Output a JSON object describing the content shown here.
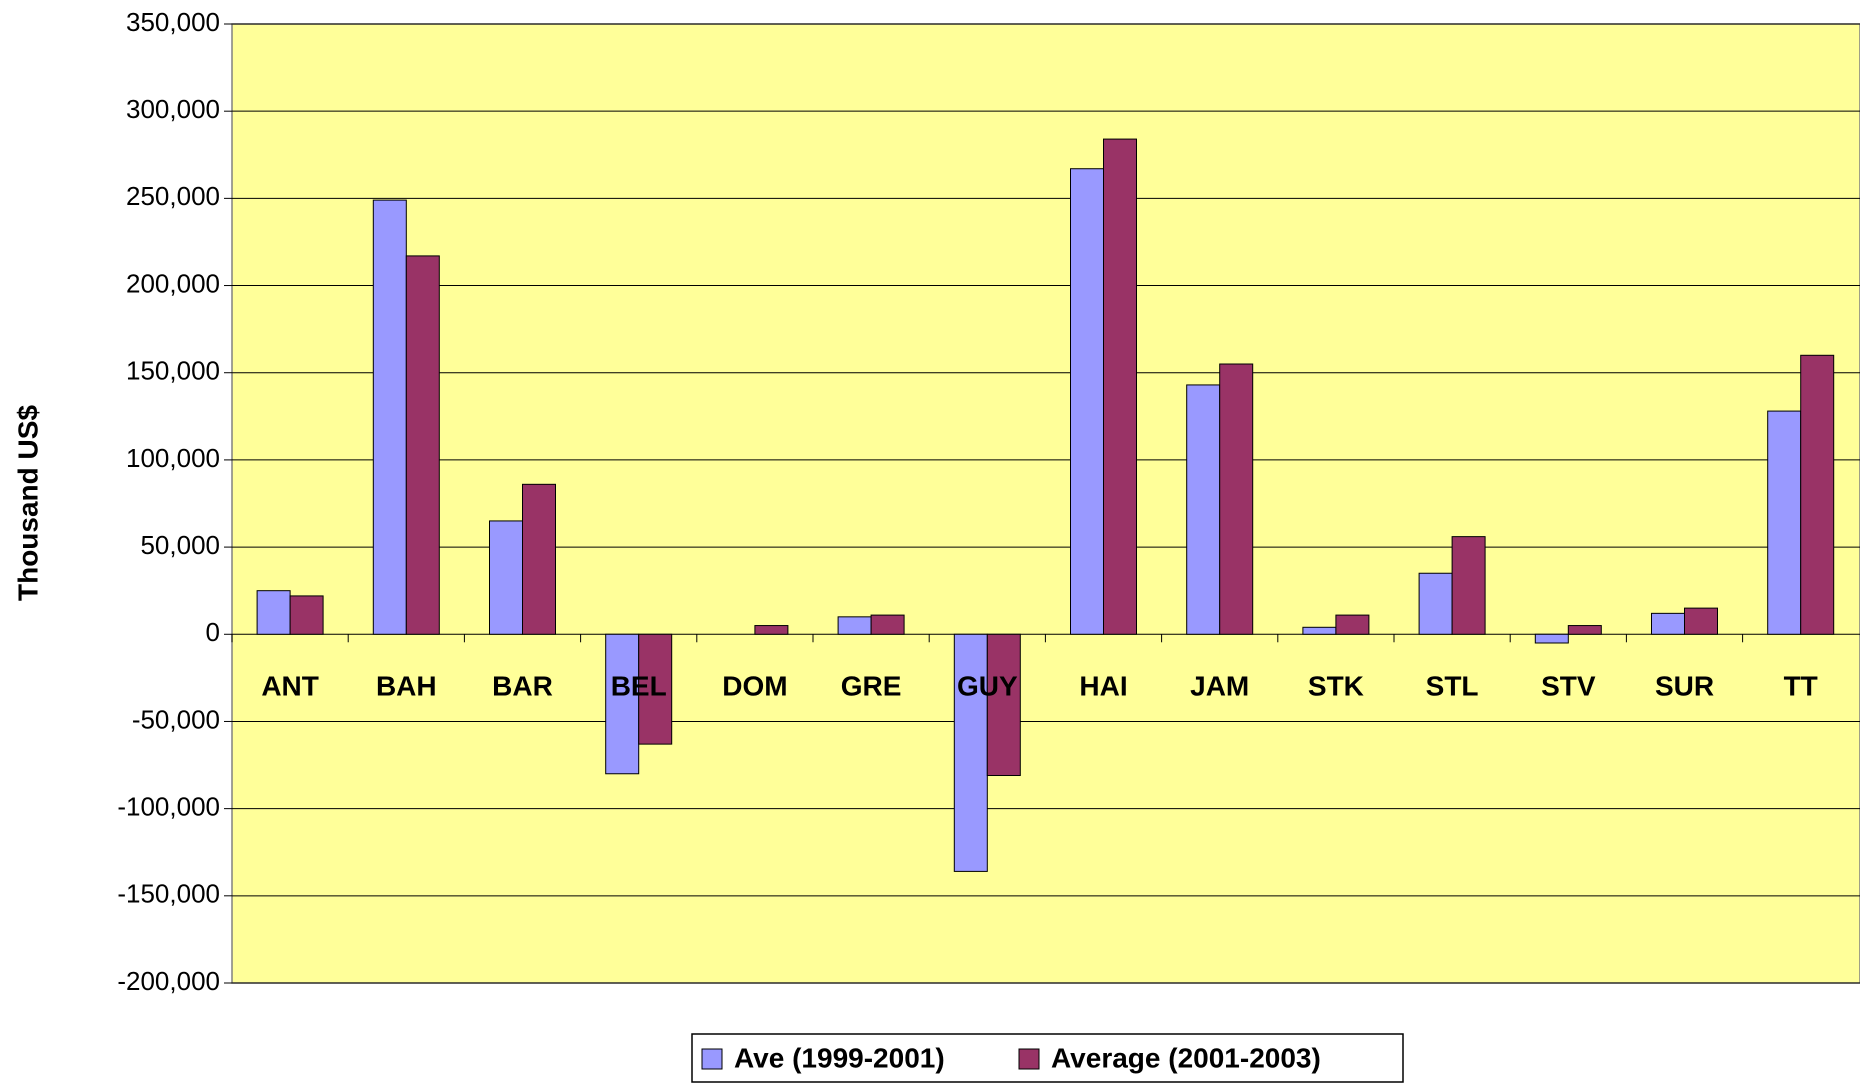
{
  "chart_data": {
    "type": "bar",
    "y_label": "Thousand US$",
    "categories": [
      "ANT",
      "BAH",
      "BAR",
      "BEL",
      "DOM",
      "GRE",
      "GUY",
      "HAI",
      "JAM",
      "STK",
      "STL",
      "STV",
      "SUR",
      "TT"
    ],
    "series": [
      {
        "name": "Ave (1999-2001)",
        "color": "#9999ff",
        "values": [
          25000,
          249000,
          65000,
          -80000,
          0,
          10000,
          -136000,
          267000,
          143000,
          4000,
          35000,
          -5000,
          12000,
          128000
        ]
      },
      {
        "name": "Average (2001-2003)",
        "color": "#993366",
        "values": [
          22000,
          217000,
          86000,
          -63000,
          5000,
          11000,
          -81000,
          284000,
          155000,
          11000,
          56000,
          5000,
          15000,
          160000
        ]
      }
    ],
    "ylim": [
      -200000,
      350000
    ],
    "yticks": [
      {
        "value": -200000,
        "label": "-200,000"
      },
      {
        "value": -150000,
        "label": "-150,000"
      },
      {
        "value": -100000,
        "label": "-100,000"
      },
      {
        "value": -50000,
        "label": "-50,000"
      },
      0,
      {
        "value": 50000,
        "label": "50,000"
      },
      {
        "value": 100000,
        "label": "100,000"
      },
      {
        "value": 150000,
        "label": "150,000"
      },
      {
        "value": 200000,
        "label": "200,000"
      },
      {
        "value": 250000,
        "label": "250,000"
      },
      {
        "value": 300000,
        "label": "300,000"
      },
      {
        "value": 350000,
        "label": "350,000"
      }
    ],
    "grid": true,
    "plot_background": "#ffff99",
    "legend": "bottom"
  }
}
